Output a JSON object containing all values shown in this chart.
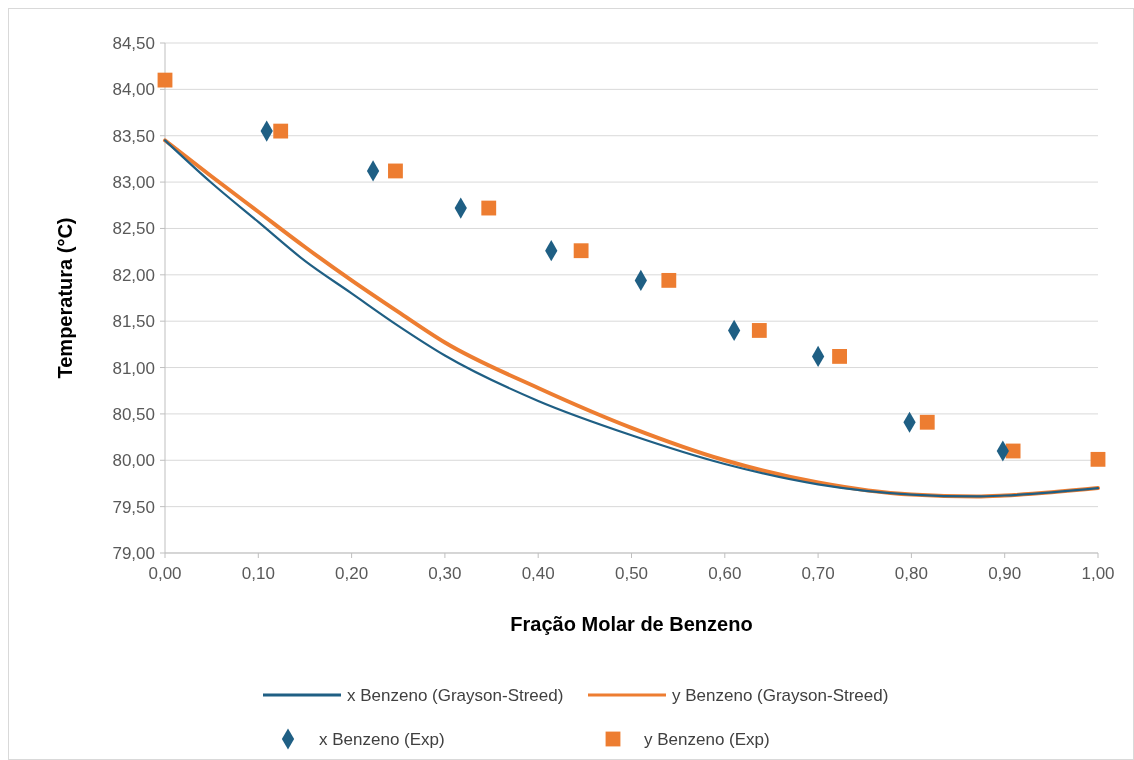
{
  "chart_data": {
    "type": "line",
    "xlabel": "Fração Molar de Benzeno",
    "ylabel": "Temperatura (°C)",
    "xlim": [
      0,
      1
    ],
    "xticks": [
      {
        "value": 0,
        "label": "0,00"
      },
      {
        "value": 0.1,
        "label": "0,10"
      },
      {
        "value": 0.2,
        "label": "0,20"
      },
      {
        "value": 0.3,
        "label": "0,30"
      },
      {
        "value": 0.4,
        "label": "0,40"
      },
      {
        "value": 0.5,
        "label": "0,50"
      },
      {
        "value": 0.6,
        "label": "0,60"
      },
      {
        "value": 0.7,
        "label": "0,70"
      },
      {
        "value": 0.8,
        "label": "0,80"
      },
      {
        "value": 0.9,
        "label": "0,90"
      },
      {
        "value": 1,
        "label": "1,00"
      }
    ],
    "ylim": [
      79,
      84.5
    ],
    "yticks": [
      {
        "value": 79,
        "label": "79,00"
      },
      {
        "value": 79.5,
        "label": "79,50"
      },
      {
        "value": 80,
        "label": "80,00"
      },
      {
        "value": 80.5,
        "label": "80,50"
      },
      {
        "value": 81,
        "label": "81,00"
      },
      {
        "value": 81.5,
        "label": "81,50"
      },
      {
        "value": 82,
        "label": "82,00"
      },
      {
        "value": 82.5,
        "label": "82,50"
      },
      {
        "value": 83,
        "label": "83,00"
      },
      {
        "value": 83.5,
        "label": "83,50"
      },
      {
        "value": 84,
        "label": "84,00"
      },
      {
        "value": 84.5,
        "label": "84,50"
      }
    ],
    "grid": "y",
    "legend": "bottom",
    "series": [
      {
        "name": "x Benzeno (Grayson-Streed)",
        "color": "#1f5f84",
        "marker": "none",
        "x": [
          0,
          0.05,
          0.1,
          0.15,
          0.2,
          0.25,
          0.3,
          0.4,
          0.5,
          0.6,
          0.7,
          0.8,
          0.87,
          0.9,
          1
        ],
        "values": [
          83.45,
          82.99,
          82.57,
          82.15,
          81.8,
          81.45,
          81.13,
          80.64,
          80.27,
          79.96,
          79.74,
          79.63,
          79.61,
          79.62,
          79.7
        ]
      },
      {
        "name": "y Benzeno (Grayson-Streed)",
        "color": "#ed7d31",
        "marker": "none",
        "x": [
          0,
          0.05,
          0.1,
          0.15,
          0.2,
          0.25,
          0.3,
          0.4,
          0.5,
          0.6,
          0.7,
          0.8,
          0.87,
          0.9,
          1
        ],
        "values": [
          83.45,
          83.06,
          82.68,
          82.3,
          81.94,
          81.6,
          81.27,
          80.78,
          80.35,
          80.0,
          79.76,
          79.63,
          79.61,
          79.62,
          79.7
        ]
      },
      {
        "name": "x Benzeno (Exp)",
        "type": "scatter",
        "color": "#1f5f84",
        "marker": "diamond",
        "x": [
          0.109,
          0.223,
          0.317,
          0.414,
          0.51,
          0.61,
          0.7,
          0.798,
          0.898
        ],
        "values": [
          83.55,
          83.12,
          82.72,
          82.26,
          81.94,
          81.4,
          81.12,
          80.41,
          80.1
        ]
      },
      {
        "name": "y Benzeno (Exp)",
        "type": "scatter",
        "color": "#ed7d31",
        "marker": "square",
        "x": [
          0,
          0.124,
          0.247,
          0.347,
          0.446,
          0.54,
          0.637,
          0.723,
          0.817,
          0.909,
          1
        ],
        "values": [
          84.1,
          83.55,
          83.12,
          82.72,
          82.26,
          81.94,
          81.4,
          81.12,
          80.41,
          80.1,
          80.01
        ]
      }
    ]
  }
}
